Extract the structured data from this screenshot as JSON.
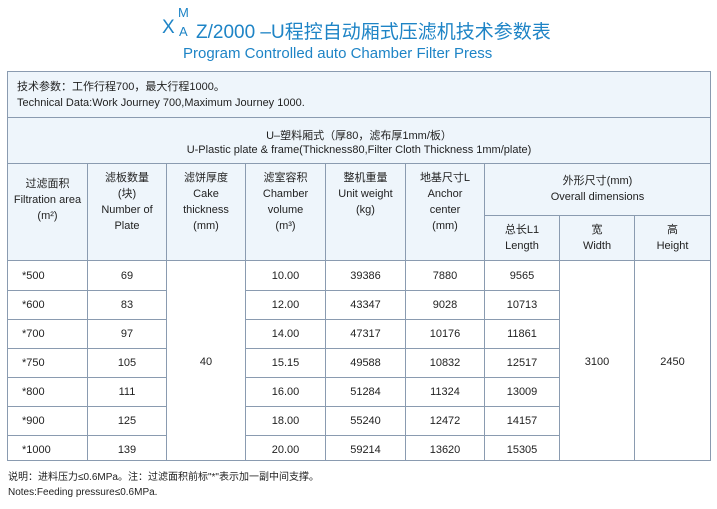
{
  "title": {
    "x": "X",
    "m": "M",
    "a": "A",
    "rest": "Z/2000 –U程控自动厢式压滤机技术参数表",
    "english": "Program Controlled auto Chamber Filter Press"
  },
  "tech_data": {
    "cn": "技术参数：工作行程700，最大行程1000。",
    "en": "Technical Data:Work Journey 700,Maximum Journey 1000."
  },
  "plate_type": {
    "cn": "U–塑料厢式（厚80，滤布厚1mm/板）",
    "en": "U-Plastic plate & frame(Thickness80,Filter Cloth Thickness 1mm/plate)"
  },
  "headers": {
    "area": [
      "过滤面积",
      "Filtration area",
      "(m²)"
    ],
    "plates": [
      "滤板数量",
      "(块)",
      "Number of",
      "Plate"
    ],
    "cake": [
      "滤饼厚度",
      "Cake",
      "thickness",
      "(mm)"
    ],
    "chamber": [
      "滤室容积",
      "Chamber",
      "volume",
      "(m³)"
    ],
    "weight": [
      "整机重量",
      "Unit weight",
      "(kg)"
    ],
    "anchor": [
      "地基尺寸L",
      "Anchor",
      "center",
      "(mm)"
    ],
    "overall": [
      "外形尺寸(mm)",
      "Overall  dimensions"
    ],
    "length": [
      "总长L1",
      "Length"
    ],
    "width": [
      "宽",
      "Width"
    ],
    "height": [
      "高",
      "Height"
    ]
  },
  "rows": [
    {
      "area": "*500",
      "plates": "69",
      "volume": "10.00",
      "weight": "39386",
      "anchor": "7880",
      "length": "9565"
    },
    {
      "area": "*600",
      "plates": "83",
      "volume": "12.00",
      "weight": "43347",
      "anchor": "9028",
      "length": "10713"
    },
    {
      "area": "*700",
      "plates": "97",
      "volume": "14.00",
      "weight": "47317",
      "anchor": "10176",
      "length": "11861"
    },
    {
      "area": "*750",
      "plates": "105",
      "volume": "15.15",
      "weight": "49588",
      "anchor": "10832",
      "length": "12517"
    },
    {
      "area": "*800",
      "plates": "111",
      "volume": "16.00",
      "weight": "51284",
      "anchor": "11324",
      "length": "13009"
    },
    {
      "area": "*900",
      "plates": "125",
      "volume": "18.00",
      "weight": "55240",
      "anchor": "12472",
      "length": "14157"
    },
    {
      "area": "*1000",
      "plates": "139",
      "volume": "20.00",
      "weight": "59214",
      "anchor": "13620",
      "length": "15305"
    }
  ],
  "merged": {
    "cake": "40",
    "width": "3100",
    "height": "2450"
  },
  "notes": {
    "cn": "说明：进料压力≤0.6MPa。注：过滤面积前标\"*\"表示加一副中间支撑。",
    "en": "Notes:Feeding pressure≤0.6MPa."
  }
}
